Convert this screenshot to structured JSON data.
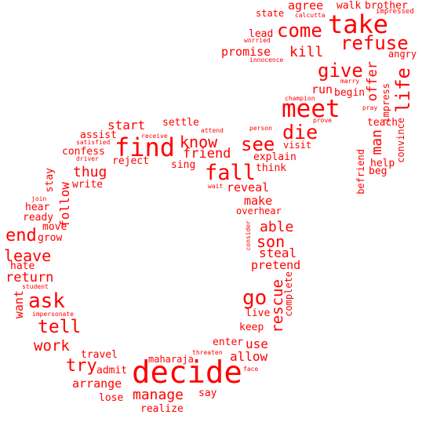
{
  "color": "#ff0000",
  "words": {
    "agree": "agree",
    "walk": "walk",
    "brother": "brother",
    "state": "state",
    "calcutta": "calcutta",
    "impressed": "impressed",
    "take": "take",
    "come": "come",
    "refuse": "refuse",
    "worried": "worried",
    "lead": "lead",
    "promise": "promise",
    "kill": "kill",
    "innocence": "innocence",
    "angry": "angry",
    "give": "give",
    "marry": "marry",
    "offer": "offer",
    "life": "life",
    "impress": "impress",
    "meet": "meet",
    "champion": "champion",
    "run": "run",
    "begin": "begin",
    "pray": "pray",
    "die": "die",
    "prove": "prove",
    "teach": "teach",
    "start": "start",
    "settle": "settle",
    "person": "person",
    "attend": "attend",
    "visit": "visit",
    "man": "man",
    "convince": "convince",
    "assist": "assist",
    "receive": "receive",
    "find": "find",
    "know": "know",
    "see": "see",
    "satisfied": "satisfied",
    "confess": "confess",
    "friend": "friend",
    "explain": "explain",
    "driver": "driver",
    "reject": "reject",
    "sing": "sing",
    "think": "think",
    "help": "help",
    "befriend": "befriend",
    "beg": "beg",
    "thug": "thug",
    "fall": "fall",
    "stay": "stay",
    "write": "write",
    "wait": "wait",
    "reveal": "reveal",
    "join": "join",
    "follow": "follow",
    "make": "make",
    "hear": "hear",
    "overhear": "overhear",
    "ready": "ready",
    "move": "move",
    "able": "able",
    "end": "end",
    "grow": "grow",
    "consider": "consider",
    "son": "son",
    "leave": "leave",
    "steal": "steal",
    "hate": "hate",
    "pretend": "pretend",
    "return": "return",
    "student": "student",
    "complete": "complete",
    "rescue": "rescue",
    "go": "go",
    "want": "want",
    "ask": "ask",
    "live": "live",
    "impersonate": "impersonate",
    "tell": "tell",
    "keep": "keep",
    "work": "work",
    "use": "use",
    "enter": "enter",
    "travel": "travel",
    "maharaja": "maharaja",
    "threaten": "threaten",
    "allow": "allow",
    "try": "try",
    "admit": "admit",
    "decide": "decide",
    "face": "face",
    "arrange": "arrange",
    "manage": "manage",
    "say": "say",
    "lose": "lose",
    "realize": "realize"
  }
}
